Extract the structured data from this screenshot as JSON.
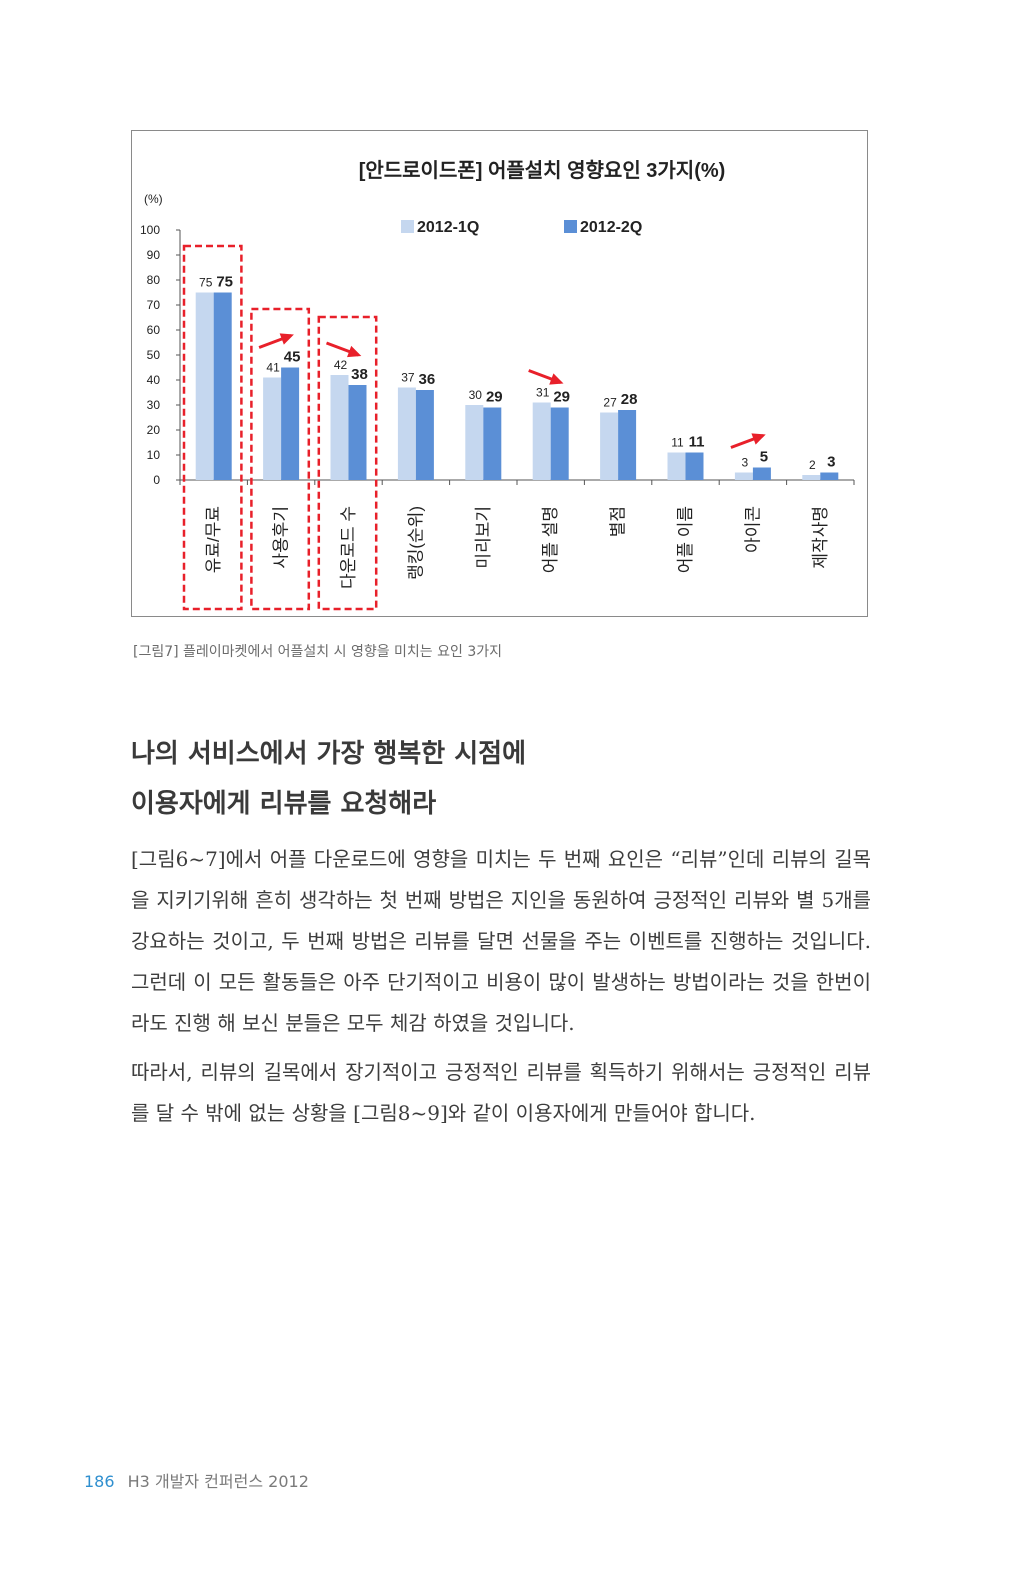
{
  "chart_data": {
    "type": "bar",
    "title": "[안드로이드폰] 어플설치 영향요인 3가지(%)",
    "ylabel": "(%)",
    "ylim": [
      0,
      100
    ],
    "yticks": [
      0,
      10,
      20,
      30,
      40,
      50,
      60,
      70,
      80,
      90,
      100
    ],
    "categories": [
      "유료/무료",
      "사용후기",
      "다운로드 수",
      "랭킹(순위)",
      "미리보기",
      "어플 설명",
      "별점",
      "어플 이름",
      "아이콘",
      "제작사명"
    ],
    "series": [
      {
        "name": "2012-1Q",
        "values": [
          75,
          41,
          42,
          37,
          30,
          31,
          27,
          11,
          3,
          2
        ],
        "color": "#c5d7ef"
      },
      {
        "name": "2012-2Q",
        "values": [
          75,
          45,
          38,
          36,
          29,
          29,
          28,
          11,
          5,
          3
        ],
        "color": "#5b8fd6"
      }
    ],
    "legend_position": "top",
    "highlighted_categories": [
      0,
      1,
      2
    ],
    "trend_arrows": [
      {
        "category": 1,
        "direction": "up"
      },
      {
        "category": 2,
        "direction": "down"
      },
      {
        "category": 5,
        "direction": "down"
      },
      {
        "category": 8,
        "direction": "up"
      }
    ],
    "highlight_color": "#e8202a",
    "arrow_color": "#e8202a"
  },
  "caption": "[그림7] 플레이마켓에서 어플설치 시 영향을 미치는 요인 3가지",
  "heading": {
    "line1": "나의 서비스에서 가장 행복한 시점에",
    "line2": "이용자에게 리뷰를 요청해라"
  },
  "paragraphs": [
    "[그림6~7]에서 어플 다운로드에 영향을 미치는 두 번째 요인은 “리뷰”인데 리뷰의 길목을 지키기위해 흔히 생각하는 첫 번째 방법은 지인을 동원하여 긍정적인 리뷰와 별 5개를 강요하는 것이고, 두 번째 방법은 리뷰를 달면 선물을 주는 이벤트를 진행하는 것입니다. 그런데 이 모든 활동들은 아주 단기적이고 비용이 많이 발생하는 방법이라는 것을 한번이라도 진행 해 보신 분들은 모두 체감 하였을 것입니다.",
    "따라서, 리뷰의 길목에서 장기적이고 긍정적인 리뷰를 획득하기 위해서는 긍정적인 리뷰를 달 수 밖에 없는 상황을 [그림8~9]와 같이 이용자에게 만들어야 합니다."
  ],
  "footer": {
    "page_number": "186",
    "text": "H3 개발자 컨퍼런스 2012"
  }
}
